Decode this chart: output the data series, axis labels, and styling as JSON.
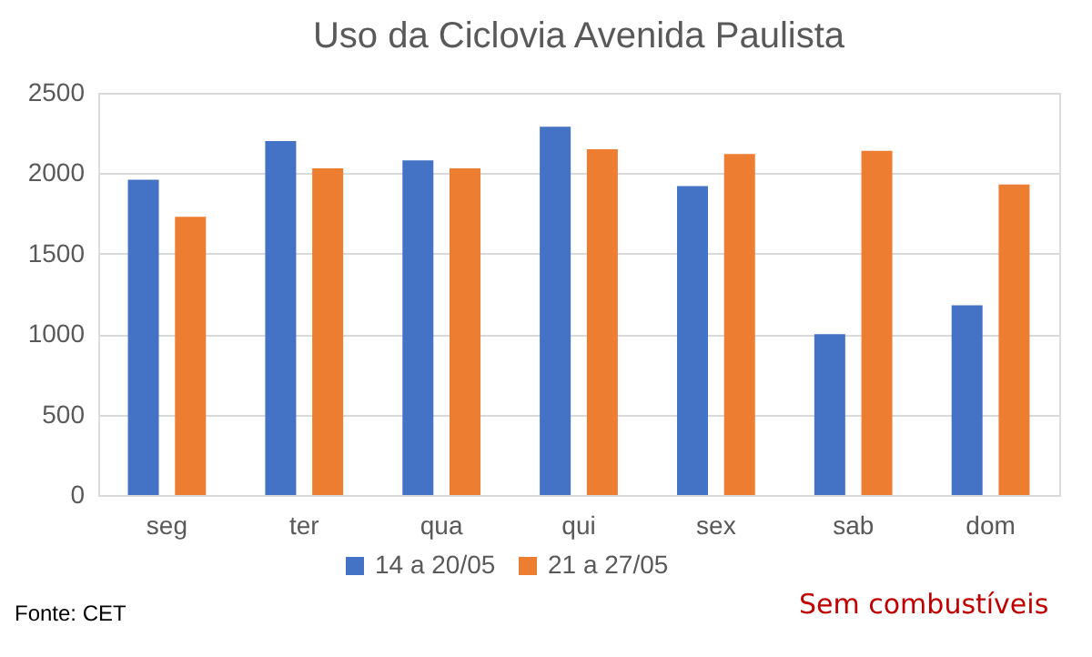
{
  "chart_data": {
    "type": "bar",
    "title": "Uso da Ciclovia Avenida Paulista",
    "categories": [
      "seg",
      "ter",
      "qua",
      "qui",
      "sex",
      "sab",
      "dom"
    ],
    "series": [
      {
        "name": "14 a 20/05",
        "color": "#4472c4",
        "values": [
          1960,
          2200,
          2080,
          2290,
          1920,
          1000,
          1180
        ]
      },
      {
        "name": "21 a 27/05",
        "color": "#ed7d31",
        "values": [
          1730,
          2030,
          2030,
          2150,
          2120,
          2140,
          1930
        ]
      }
    ],
    "ylim": [
      0,
      2500
    ],
    "yticks": [
      0,
      500,
      1000,
      1500,
      2000,
      2500
    ],
    "grid": "y",
    "legend": "bottom",
    "annotations": [
      "Fonte: CET",
      "Sem combustíveis"
    ]
  }
}
